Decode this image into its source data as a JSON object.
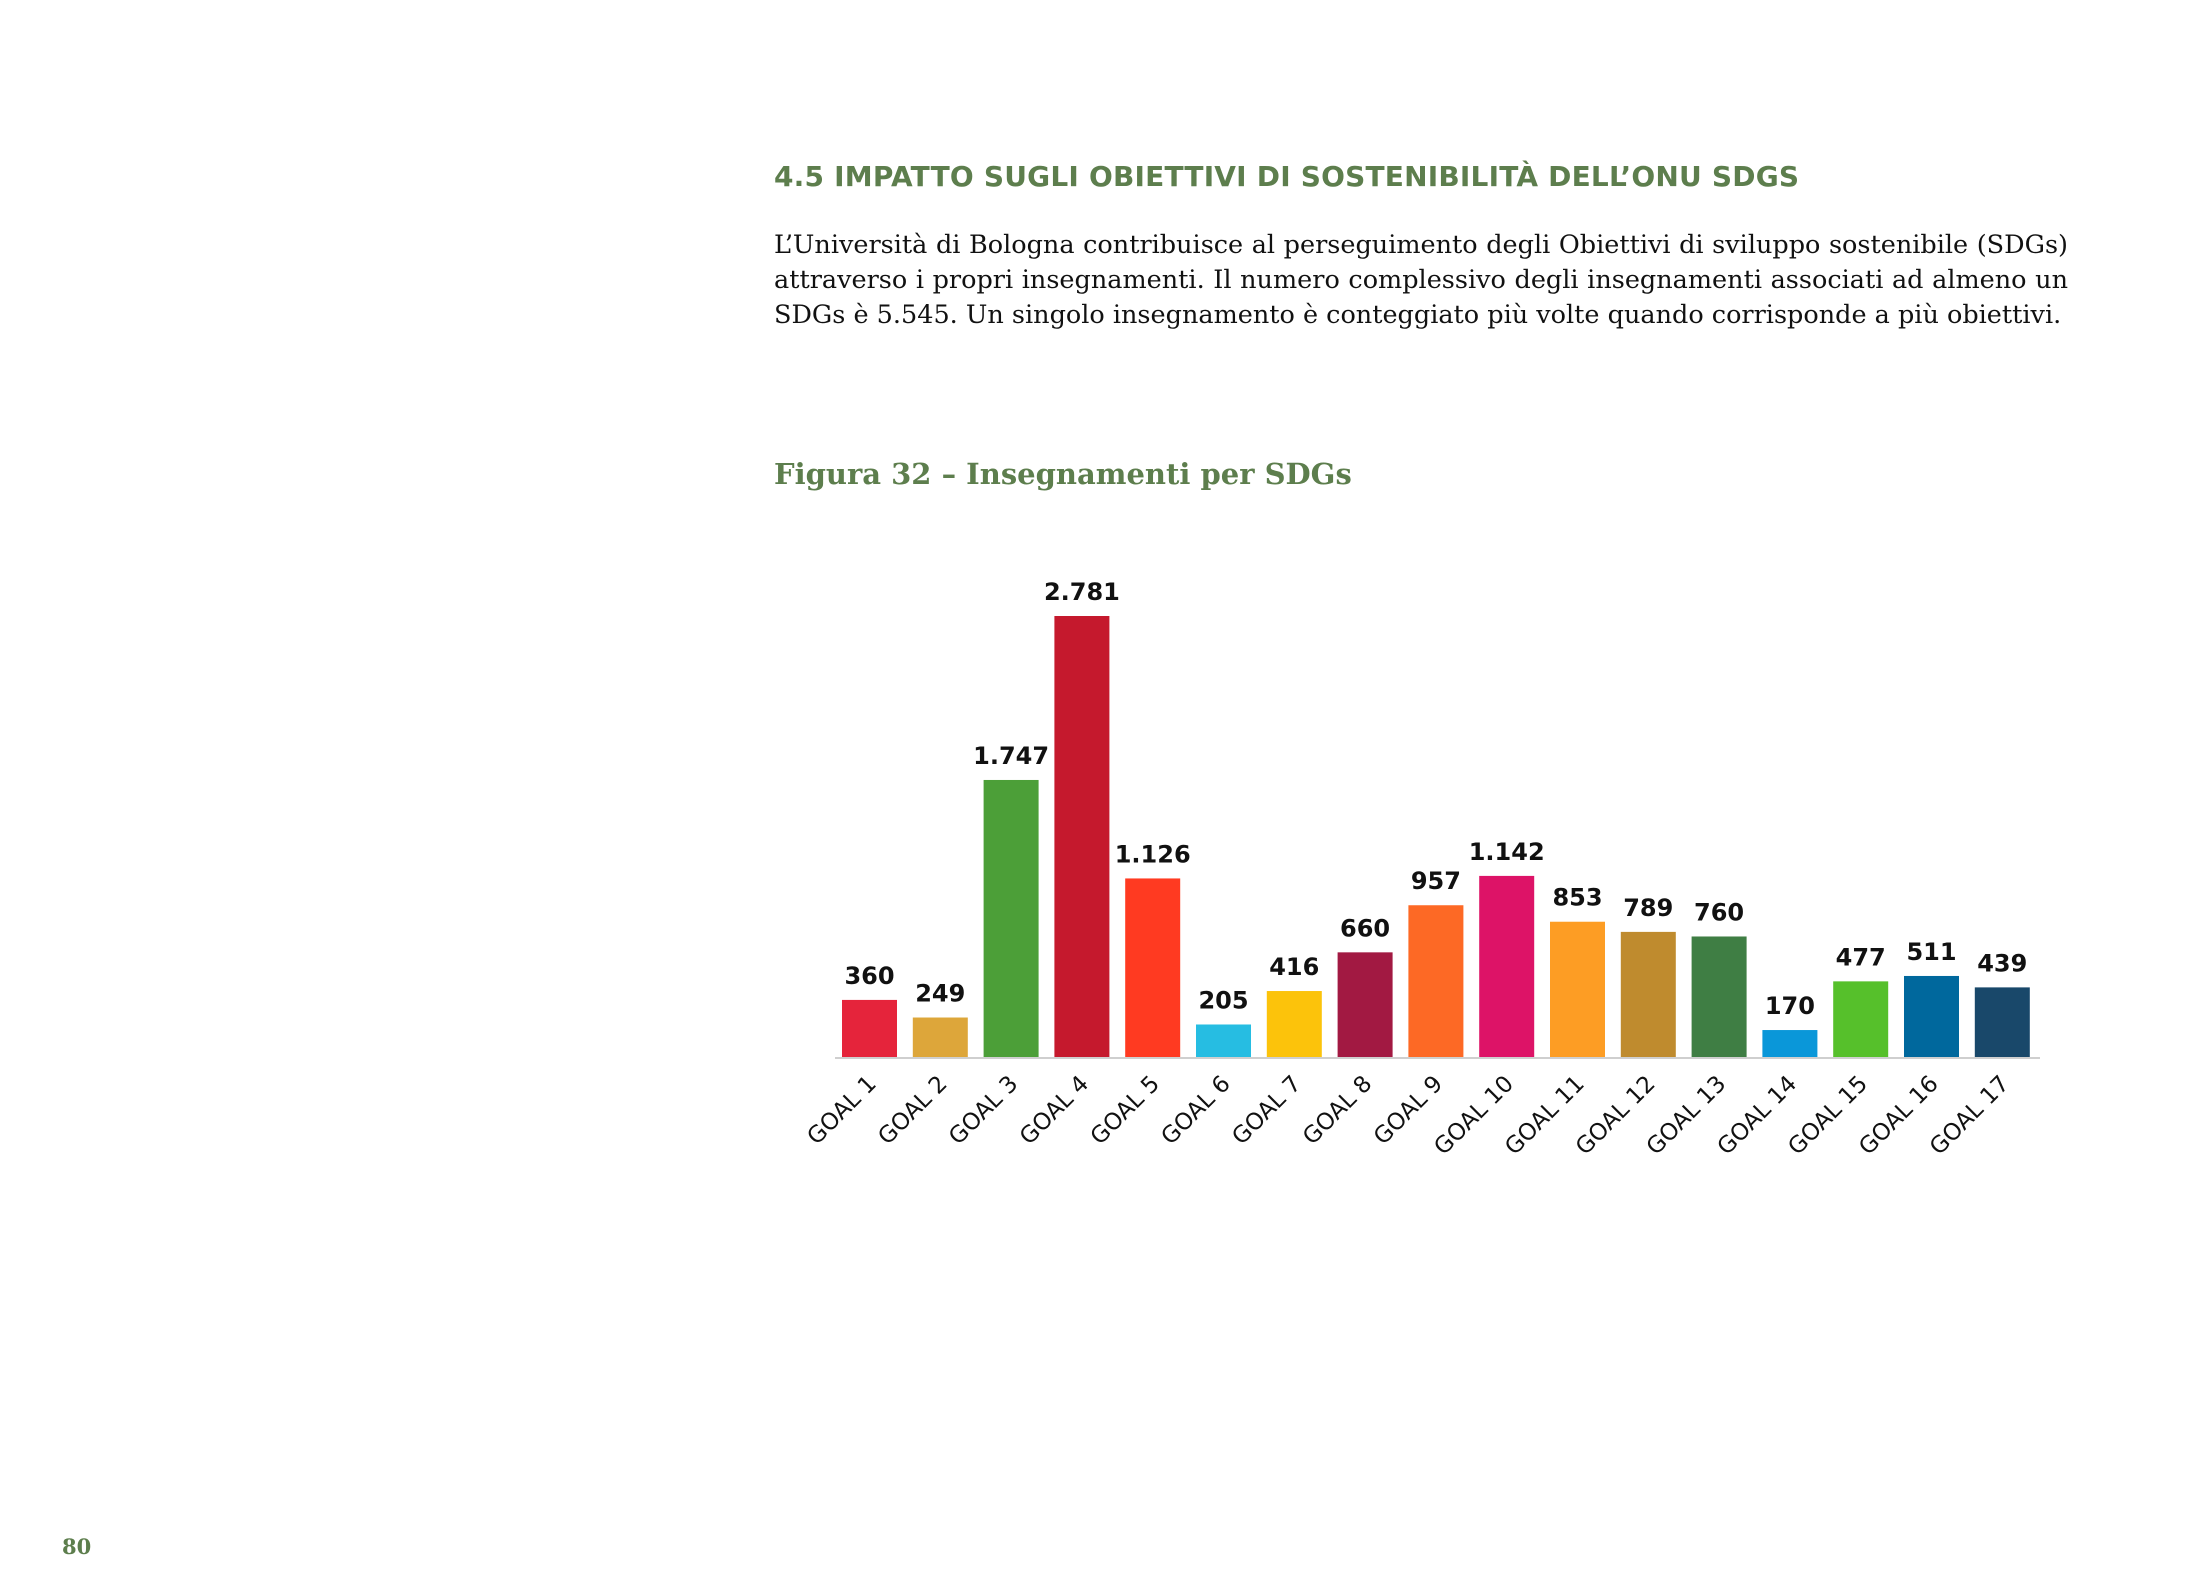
{
  "section": {
    "heading": "4.5 IMPATTO SUGLI OBIETTIVI DI SOSTENIBILITÀ DELL’ONU SDGS",
    "body": "L’Università di Bologna contribuisce al perseguimento degli Obiettivi di sviluppo sostenibile (SDGs) attraverso i propri insegnamenti. Il numero complessivo degli insegnamenti associati ad almeno un SDGs è 5.545. Un singolo insegnamento è conteggiato più volte quando corrisponde a più obiettivi."
  },
  "figure": {
    "caption": "Figura 32 – Insegnamenti per SDGs"
  },
  "chart_data": {
    "type": "bar",
    "title": "",
    "xlabel": "",
    "ylabel": "",
    "ylim": [
      0,
      2781
    ],
    "grid": false,
    "legend": "none",
    "categories": [
      "GOAL 1",
      "GOAL 2",
      "GOAL 3",
      "GOAL 4",
      "GOAL 5",
      "GOAL 6",
      "GOAL 7",
      "GOAL 8",
      "GOAL 9",
      "GOAL 10",
      "GOAL 11",
      "GOAL 12",
      "GOAL 13",
      "GOAL 14",
      "GOAL 15",
      "GOAL 16",
      "GOAL 17"
    ],
    "values": [
      360,
      249,
      1747,
      2781,
      1126,
      205,
      416,
      660,
      957,
      1142,
      853,
      789,
      760,
      170,
      477,
      511,
      439
    ],
    "value_labels": [
      "360",
      "249",
      "1.747",
      "2.781",
      "1.126",
      "205",
      "416",
      "660",
      "957",
      "1.142",
      "853",
      "789",
      "760",
      "170",
      "477",
      "511",
      "439"
    ],
    "colors": [
      "#e5243b",
      "#dda63a",
      "#4c9f38",
      "#c5192d",
      "#ff3a21",
      "#26bde2",
      "#fcc30b",
      "#a21942",
      "#fd6925",
      "#dd1367",
      "#fd9d24",
      "#bf8b2e",
      "#3f7e44",
      "#0a97d9",
      "#56c02b",
      "#00689d",
      "#19486a"
    ]
  },
  "footer": {
    "page_number": "80"
  }
}
